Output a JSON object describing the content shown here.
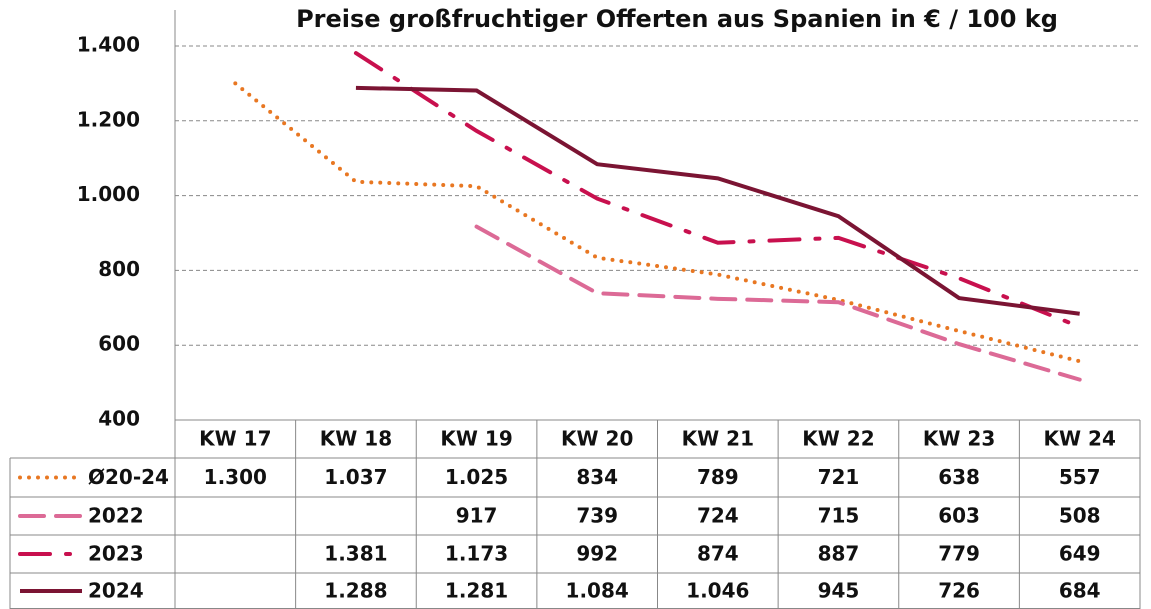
{
  "chart_data": {
    "type": "line",
    "title": "Preise großfruchtiger Offerten aus Spanien in € / 100 kg",
    "categories": [
      "KW 17",
      "KW 18",
      "KW 19",
      "KW 20",
      "KW 21",
      "KW 22",
      "KW 23",
      "KW 24"
    ],
    "series": [
      {
        "name": "Ø20-24",
        "color": "#e87722",
        "style": "dotted",
        "values": [
          1300,
          1037,
          1025,
          834,
          789,
          721,
          638,
          557
        ],
        "value_labels": [
          "1.300",
          "1.037",
          "1.025",
          "834",
          "789",
          "721",
          "638",
          "557"
        ]
      },
      {
        "name": "2022",
        "color": "#dc6a96",
        "style": "dashed",
        "values": [
          null,
          null,
          917,
          739,
          724,
          715,
          603,
          508
        ],
        "value_labels": [
          null,
          null,
          "917",
          "739",
          "724",
          "715",
          "603",
          "508"
        ]
      },
      {
        "name": "2023",
        "color": "#c8104e",
        "style": "dashdot",
        "values": [
          null,
          1381,
          1173,
          992,
          874,
          887,
          779,
          649
        ],
        "value_labels": [
          null,
          "1.381",
          "1.173",
          "992",
          "874",
          "887",
          "779",
          "649"
        ]
      },
      {
        "name": "2024",
        "color": "#7b1433",
        "style": "solid",
        "values": [
          null,
          1288,
          1281,
          1084,
          1046,
          945,
          726,
          684
        ],
        "value_labels": [
          null,
          "1.288",
          "1.281",
          "1.084",
          "1.046",
          "945",
          "726",
          "684"
        ]
      }
    ],
    "ylim": [
      400,
      1400
    ],
    "yticks": [
      400,
      600,
      800,
      {
        "value": 1000,
        "label": "1.000"
      },
      {
        "value": 1200,
        "label": "1.200"
      },
      {
        "value": 1400,
        "label": "1.400"
      }
    ],
    "grid": true
  }
}
